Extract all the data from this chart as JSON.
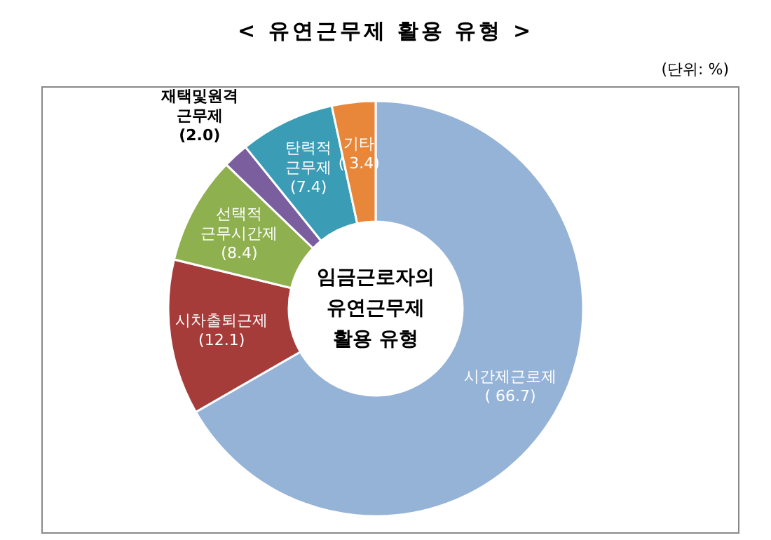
{
  "chart_data": {
    "type": "donut",
    "title": "< 유연근무제 활용 유형 >",
    "annotations": [
      "(단위: %)",
      "임금근로자의 유연근무제 활용 유형"
    ],
    "categories": [
      "시간제근로제",
      "시차출퇴근제",
      "선택적 근무시간제",
      "재택및원격 근무제",
      "탄력적 근무제",
      "기타"
    ],
    "values": [
      66.7,
      12.1,
      8.4,
      2.0,
      7.4,
      3.4
    ],
    "value_labels": [
      "( 66.7)",
      "(12.1)",
      "(8.4)",
      "(2.0)",
      "(7.4)",
      "( 3.4)"
    ],
    "colors": [
      "#95b3d7",
      "#a63c3a",
      "#8fb04f",
      "#7a5e9e",
      "#3a9cb5",
      "#e8873a"
    ]
  }
}
